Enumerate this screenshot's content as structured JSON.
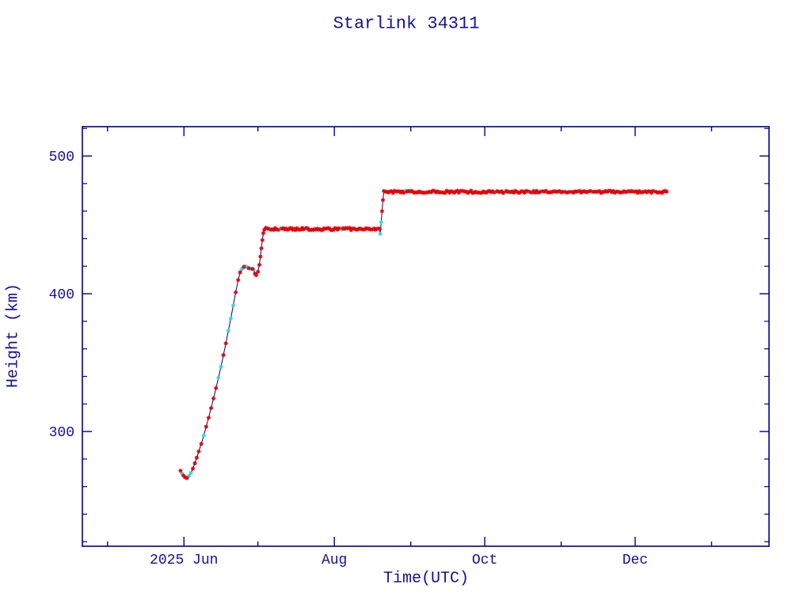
{
  "page_background": "#ffffff",
  "chart_data": {
    "type": "line",
    "title": "Starlink 34311",
    "xlabel": "Time(UTC)",
    "ylabel": "Height (km)",
    "legend": "none",
    "grid": false,
    "colors": {
      "axis": "#00008b",
      "text": "#11119b",
      "line": "#00008b",
      "marker_primary": "#e60008",
      "marker_secondary": "#30d6e6"
    },
    "x_axis": {
      "unit": "days since 2025-05-01",
      "range": [
        -10.2,
        268.3
      ],
      "ticks": [
        {
          "day": 0,
          "label": "",
          "major": false
        },
        {
          "day": 31,
          "label": "2025 Jun",
          "major": true
        },
        {
          "day": 61,
          "label": "",
          "major": false
        },
        {
          "day": 92,
          "label": "Aug",
          "major": true
        },
        {
          "day": 123,
          "label": "",
          "major": false
        },
        {
          "day": 153,
          "label": "Oct",
          "major": true
        },
        {
          "day": 184,
          "label": "",
          "major": false
        },
        {
          "day": 214,
          "label": "Dec",
          "major": true
        },
        {
          "day": 245,
          "label": "",
          "major": false
        }
      ]
    },
    "y_axis": {
      "unit": "km",
      "range": [
        216.7,
        521.3
      ],
      "major_ticks": [
        300,
        400,
        500
      ],
      "minor_tick_start": 220,
      "minor_tick_end": 520,
      "minor_tick_step": 20
    },
    "series": {
      "name": "orbit-height",
      "marker": "asterisk",
      "segments": [
        {
          "kind": "points",
          "cyan_ratio": 0.32,
          "pts": [
            [
              29.6,
              271.5
            ],
            [
              30.2,
              269.5
            ],
            [
              30.8,
              268
            ],
            [
              31.4,
              266.8
            ],
            [
              32.2,
              266.2
            ],
            [
              33.0,
              267.5
            ],
            [
              33.8,
              270
            ],
            [
              34.6,
              273
            ],
            [
              35.4,
              277
            ],
            [
              36.2,
              281
            ],
            [
              37.0,
              285.5
            ],
            [
              38.0,
              291
            ],
            [
              39.0,
              297
            ],
            [
              40.0,
              303.5
            ],
            [
              41.0,
              310
            ],
            [
              42.0,
              317
            ],
            [
              43.0,
              324
            ],
            [
              44.0,
              331.5
            ],
            [
              45.0,
              339
            ],
            [
              46.0,
              347
            ],
            [
              47.0,
              355.5
            ],
            [
              48.0,
              364
            ],
            [
              49.0,
              373
            ],
            [
              50.0,
              382
            ],
            [
              51.0,
              391.5
            ],
            [
              52.0,
              401
            ],
            [
              53.0,
              410
            ],
            [
              53.8,
              415.5
            ]
          ]
        },
        {
          "kind": "points",
          "cyan_ratio": 0.3,
          "pts": [
            [
              54.3,
              417.5
            ],
            [
              54.8,
              418.5
            ],
            [
              55.3,
              419.5
            ],
            [
              55.8,
              420
            ],
            [
              56.3,
              419.5
            ],
            [
              56.8,
              419
            ],
            [
              57.3,
              418.5
            ],
            [
              57.8,
              418.5
            ],
            [
              58.3,
              418
            ],
            [
              58.8,
              418
            ],
            [
              59.3,
              417.5
            ],
            [
              59.8,
              414.5
            ],
            [
              60.3,
              413.5
            ]
          ]
        },
        {
          "kind": "points",
          "cyan_ratio": 0.25,
          "pts": [
            [
              61.0,
              416
            ],
            [
              61.6,
              421
            ],
            [
              62.0,
              427
            ],
            [
              62.4,
              433
            ],
            [
              62.8,
              439
            ],
            [
              63.2,
              444
            ]
          ]
        },
        {
          "kind": "plateau",
          "t0": 63.6,
          "t1": 110.2,
          "km": 447,
          "jitter": 0.8,
          "step": 0.55,
          "cyan_ratio": 0.1
        },
        {
          "kind": "points",
          "cyan_ratio": 1.0,
          "pts": [
            [
              110.6,
              443.5
            ]
          ]
        },
        {
          "kind": "points",
          "cyan_ratio": 0.15,
          "pts": [
            [
              111.0,
              452
            ],
            [
              111.35,
              460
            ],
            [
              111.7,
              468
            ]
          ]
        },
        {
          "kind": "plateau",
          "t0": 112.1,
          "t1": 226.8,
          "km": 474,
          "jitter": 0.8,
          "step": 0.62,
          "cyan_ratio": 0.07
        }
      ]
    }
  }
}
